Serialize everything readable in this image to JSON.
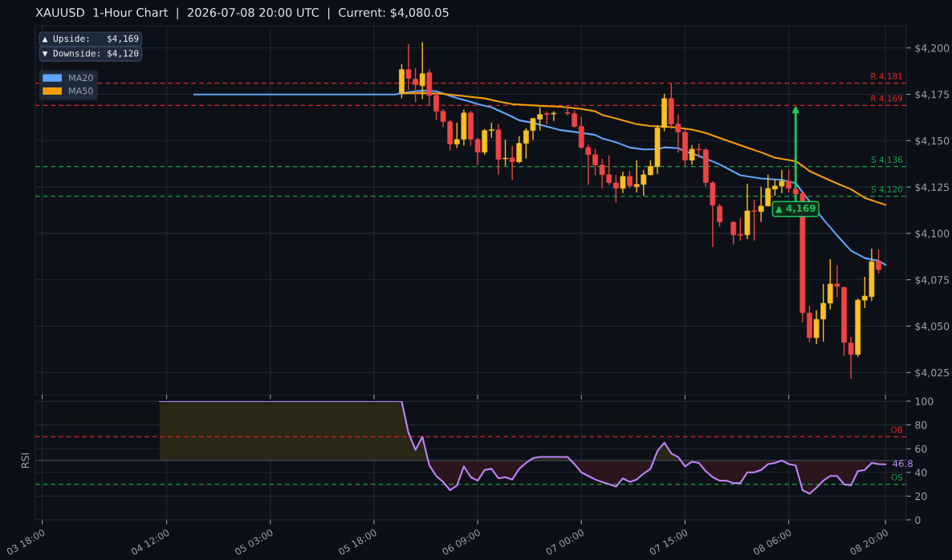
{
  "chart_data": [
    {
      "type": "candlestick",
      "title": "XAUUSD  1-Hour Chart  |  2026-07-08 20:00 UTC  |  Current: $4,080.05",
      "x": [
        "2026-07-05T22:00",
        "2026-07-05T23:00",
        "2026-07-06T00:00",
        "2026-07-06T01:00",
        "2026-07-06T02:00",
        "2026-07-06T03:00",
        "2026-07-06T04:00",
        "2026-07-06T05:00",
        "2026-07-06T06:00",
        "2026-07-06T07:00",
        "2026-07-06T08:00",
        "2026-07-06T09:00",
        "2026-07-06T10:00",
        "2026-07-06T11:00",
        "2026-07-06T12:00",
        "2026-07-06T13:00",
        "2026-07-06T14:00",
        "2026-07-06T15:00",
        "2026-07-06T16:00",
        "2026-07-06T17:00",
        "2026-07-06T18:00",
        "2026-07-06T19:00",
        "2026-07-06T20:00",
        "2026-07-06T22:00",
        "2026-07-06T23:00",
        "2026-07-07T00:00",
        "2026-07-07T01:00",
        "2026-07-07T02:00",
        "2026-07-07T03:00",
        "2026-07-07T04:00",
        "2026-07-07T05:00",
        "2026-07-07T06:00",
        "2026-07-07T07:00",
        "2026-07-07T08:00",
        "2026-07-07T09:00",
        "2026-07-07T10:00",
        "2026-07-07T11:00",
        "2026-07-07T12:00",
        "2026-07-07T13:00",
        "2026-07-07T14:00",
        "2026-07-07T15:00",
        "2026-07-07T16:00",
        "2026-07-07T17:00",
        "2026-07-07T18:00",
        "2026-07-07T19:00",
        "2026-07-07T20:00",
        "2026-07-07T22:00",
        "2026-07-07T23:00",
        "2026-07-08T00:00",
        "2026-07-08T01:00",
        "2026-07-08T02:00",
        "2026-07-08T03:00",
        "2026-07-08T04:00",
        "2026-07-08T05:00",
        "2026-07-08T06:00",
        "2026-07-08T07:00",
        "2026-07-08T08:00",
        "2026-07-08T09:00",
        "2026-07-08T10:00",
        "2026-07-08T11:00",
        "2026-07-08T12:00",
        "2026-07-08T13:00",
        "2026-07-08T14:00",
        "2026-07-08T15:00",
        "2026-07-08T16:00",
        "2026-07-08T17:00",
        "2026-07-08T18:00",
        "2026-07-08T19:00"
      ],
      "ohlc": [
        [
          4175.7,
          4191.3,
          4172.8,
          4188.3
        ],
        [
          4188.3,
          4202.2,
          4177.2,
          4183.7
        ],
        [
          4183.1,
          4189.2,
          4170.7,
          4180.2
        ],
        [
          4179.6,
          4203.0,
          4172.4,
          4186.1
        ],
        [
          4186.6,
          4188.3,
          4169.0,
          4174.4
        ],
        [
          4174.4,
          4176.2,
          4161.2,
          4165.9
        ],
        [
          4165.8,
          4167.0,
          4157.3,
          4160.3
        ],
        [
          4160.2,
          4161.3,
          4144.7,
          4148.2
        ],
        [
          4148.2,
          4159.7,
          4146.0,
          4150.6
        ],
        [
          4150.8,
          4166.7,
          4147.3,
          4164.9
        ],
        [
          4164.9,
          4166.0,
          4147.3,
          4150.8
        ],
        [
          4150.6,
          4151.5,
          4136.9,
          4143.8
        ],
        [
          4143.8,
          4156.3,
          4142.5,
          4155.4
        ],
        [
          4155.5,
          4159.7,
          4151.5,
          4155.9
        ],
        [
          4155.8,
          4158.9,
          4131.7,
          4139.9
        ],
        [
          4140.2,
          4150.6,
          4136.5,
          4140.6
        ],
        [
          4140.7,
          4147.2,
          4128.7,
          4138.6
        ],
        [
          4138.6,
          4152.4,
          4137.8,
          4148.5
        ],
        [
          4148.6,
          4156.7,
          4140.4,
          4155.4
        ],
        [
          4155.5,
          4162.2,
          4150.3,
          4161.9
        ],
        [
          4161.6,
          4168.0,
          4155.5,
          4164.1
        ],
        [
          4164.6,
          4165.8,
          4158.9,
          4164.2
        ],
        [
          4164.4,
          4165.8,
          4160.6,
          4164.8
        ],
        [
          4165.1,
          4168.7,
          4163.7,
          4164.7
        ],
        [
          4164.5,
          4166.2,
          4157.0,
          4157.7
        ],
        [
          4157.6,
          4162.8,
          4145.6,
          4146.4
        ],
        [
          4146.3,
          4148.0,
          4126.1,
          4142.5
        ],
        [
          4142.4,
          4145.7,
          4131.3,
          4136.9
        ],
        [
          4136.8,
          4140.2,
          4124.3,
          4131.7
        ],
        [
          4131.6,
          4142.0,
          4126.1,
          4127.4
        ],
        [
          4127.2,
          4131.6,
          4116.5,
          4124.3
        ],
        [
          4124.3,
          4133.3,
          4121.7,
          4130.7
        ],
        [
          4130.7,
          4133.6,
          4124.3,
          4125.6
        ],
        [
          4125.2,
          4139.4,
          4122.0,
          4126.4
        ],
        [
          4126.4,
          4134.2,
          4120.3,
          4131.6
        ],
        [
          4131.6,
          4139.4,
          4131.3,
          4136.1
        ],
        [
          4136.0,
          4158.4,
          4132.1,
          4156.8
        ],
        [
          4157.1,
          4175.3,
          4155.1,
          4172.7
        ],
        [
          4172.7,
          4180.9,
          4156.4,
          4158.9
        ],
        [
          4158.9,
          4164.1,
          4143.4,
          4154.7
        ],
        [
          4154.5,
          4156.1,
          4136.2,
          4139.5
        ],
        [
          4139.5,
          4147.6,
          4136.9,
          4145.4
        ],
        [
          4145.4,
          4148.5,
          4140.8,
          4145.1
        ],
        [
          4145.0,
          4145.9,
          4125.2,
          4127.4
        ],
        [
          4127.2,
          4128.1,
          4092.7,
          4115.2
        ],
        [
          4114.6,
          4116.0,
          4103.5,
          4106.2
        ],
        [
          4106.0,
          4106.5,
          4094.0,
          4099.2
        ],
        [
          4099.4,
          4108.2,
          4096.1,
          4099.0
        ],
        [
          4099.2,
          4126.8,
          4096.9,
          4112.1
        ],
        [
          4112.2,
          4118.1,
          4096.1,
          4111.9
        ],
        [
          4111.8,
          4125.1,
          4106.2,
          4114.7
        ],
        [
          4114.8,
          4131.6,
          4114.6,
          4124.2
        ],
        [
          4123.9,
          4129.0,
          4120.3,
          4125.5
        ],
        [
          4125.5,
          4134.2,
          4121.7,
          4128.1
        ],
        [
          4128.1,
          4134.2,
          4122.0,
          4124.3
        ],
        [
          4123.8,
          4124.5,
          4120.5,
          4121.3
        ],
        [
          4121.6,
          4121.8,
          4052.0,
          4057.2
        ],
        [
          4057.1,
          4061.0,
          4041.2,
          4043.8
        ],
        [
          4043.8,
          4058.5,
          4040.3,
          4053.6
        ],
        [
          4053.8,
          4072.7,
          4041.6,
          4062.3
        ],
        [
          4062.4,
          4086.1,
          4059.0,
          4072.7
        ],
        [
          4072.7,
          4082.8,
          4065.5,
          4071.5
        ],
        [
          4070.9,
          4071.2,
          4034.0,
          4041.2
        ],
        [
          4040.9,
          4044.1,
          4021.7,
          4034.7
        ],
        [
          4034.7,
          4064.9,
          4033.6,
          4064.0
        ],
        [
          4064.0,
          4076.6,
          4059.7,
          4066.2
        ],
        [
          4065.9,
          4091.7,
          4063.6,
          4084.8
        ],
        [
          4084.8,
          4091.3,
          4078.4,
          4080.5
        ]
      ],
      "colors": [
        "#fbbf24",
        "#ef4444",
        "#ef4444",
        "#fbbf24",
        "#ef4444",
        "#ef4444",
        "#ef4444",
        "#ef4444",
        "#fbbf24",
        "#fbbf24",
        "#ef4444",
        "#ef4444",
        "#fbbf24",
        "#fbbf24",
        "#ef4444",
        "#fbbf24",
        "#ef4444",
        "#fbbf24",
        "#fbbf24",
        "#fbbf24",
        "#fbbf24",
        "#ef4444",
        "#fbbf24",
        "#ef4444",
        "#ef4444",
        "#ef4444",
        "#ef4444",
        "#ef4444",
        "#ef4444",
        "#ef4444",
        "#ef4444",
        "#fbbf24",
        "#ef4444",
        "#fbbf24",
        "#fbbf24",
        "#fbbf24",
        "#fbbf24",
        "#fbbf24",
        "#ef4444",
        "#ef4444",
        "#ef4444",
        "#fbbf24",
        "#ef4444",
        "#ef4444",
        "#ef4444",
        "#ef4444",
        "#ef4444",
        "#ef4444",
        "#fbbf24",
        "#ef4444",
        "#fbbf24",
        "#fbbf24",
        "#fbbf24",
        "#fbbf24",
        "#ef4444",
        "#ef4444",
        "#ef4444",
        "#ef4444",
        "#fbbf24",
        "#fbbf24",
        "#fbbf24",
        "#ef4444",
        "#ef4444",
        "#ef4444",
        "#fbbf24",
        "#fbbf24",
        "#fbbf24",
        "#ef4444"
      ],
      "series": [
        {
          "name": "MA20",
          "type": "line",
          "color": "#60a5fa",
          "x": [
            "2026-07-04T16:00",
            "2026-07-05T21:00",
            "2026-07-05T23:00",
            "2026-07-06T01:00",
            "2026-07-06T03:00",
            "2026-07-06T06:00",
            "2026-07-06T08:00",
            "2026-07-06T09:00",
            "2026-07-06T11:00",
            "2026-07-06T14:00",
            "2026-07-06T15:00",
            "2026-07-06T17:00",
            "2026-07-06T21:00",
            "2026-07-07T00:00",
            "2026-07-07T02:00",
            "2026-07-07T03:00",
            "2026-07-07T05:00",
            "2026-07-07T07:00",
            "2026-07-07T09:00",
            "2026-07-07T11:00",
            "2026-07-07T12:00",
            "2026-07-07T14:00",
            "2026-07-07T15:00",
            "2026-07-07T17:00",
            "2026-07-07T20:00",
            "2026-07-07T23:00",
            "2026-07-08T02:00",
            "2026-07-08T05:00",
            "2026-07-08T07:00",
            "2026-07-08T11:00",
            "2026-07-08T13:00",
            "2026-07-08T15:00",
            "2026-07-08T17:00",
            "2026-07-08T19:00",
            "2026-07-08T20:00"
          ],
          "values": [
            4174.9,
            4174.9,
            4176.2,
            4177.0,
            4176.6,
            4173.0,
            4170.9,
            4169.7,
            4168.0,
            4162.9,
            4161.0,
            4159.6,
            4155.7,
            4154.2,
            4153.1,
            4151.2,
            4149.2,
            4146.3,
            4145.3,
            4145.4,
            4146.4,
            4145.9,
            4144.3,
            4141.8,
            4137.2,
            4131.3,
            4129.6,
            4128.8,
            4127.1,
            4107.6,
            4098.9,
            4090.7,
            4086.7,
            4085.2,
            4083.1
          ]
        },
        {
          "name": "MA50",
          "type": "line",
          "color": "#f59e0b",
          "x": [
            "2026-07-05T22:00",
            "2026-07-06T01:00",
            "2026-07-06T04:00",
            "2026-07-06T07:00",
            "2026-07-06T10:00",
            "2026-07-06T12:00",
            "2026-07-06T14:00",
            "2026-07-06T18:00",
            "2026-07-06T21:00",
            "2026-07-07T00:00",
            "2026-07-07T02:00",
            "2026-07-07T03:00",
            "2026-07-07T06:00",
            "2026-07-07T08:00",
            "2026-07-07T10:00",
            "2026-07-07T13:00",
            "2026-07-07T16:00",
            "2026-07-07T18:00",
            "2026-07-07T21:00",
            "2026-07-08T00:00",
            "2026-07-08T02:00",
            "2026-07-08T04:00",
            "2026-07-08T07:00",
            "2026-07-08T08:00",
            "2026-07-08T09:00",
            "2026-07-08T12:00",
            "2026-07-08T15:00",
            "2026-07-08T17:00",
            "2026-07-08T20:00"
          ],
          "values": [
            4175.5,
            4175.7,
            4175.2,
            4174.0,
            4172.8,
            4171.1,
            4169.7,
            4168.8,
            4168.3,
            4167.1,
            4165.8,
            4163.9,
            4161.0,
            4158.9,
            4157.9,
            4157.4,
            4156.0,
            4154.1,
            4150.1,
            4146.2,
            4143.7,
            4140.8,
            4138.9,
            4136.5,
            4133.6,
            4128.5,
            4123.8,
            4119.1,
            4115.4
          ]
        }
      ],
      "xlim": [
        "2026-07-03T17:00",
        "2026-07-08T23:00"
      ],
      "xticks": [
        {
          "value": "2026-07-03T18:00",
          "label": null
        },
        {
          "value": "2026-07-04T12:00",
          "label": null
        },
        {
          "value": "2026-07-05T03:00",
          "label": null
        },
        {
          "value": "2026-07-05T18:00",
          "label": null
        },
        {
          "value": "2026-07-06T09:00",
          "label": null
        },
        {
          "value": "2026-07-07T00:00",
          "label": null
        },
        {
          "value": "2026-07-07T15:00",
          "label": null
        },
        {
          "value": "2026-07-08T06:00",
          "label": null
        },
        {
          "value": "2026-07-08T20:00",
          "label": null
        }
      ],
      "ylim": [
        4013,
        4212
      ],
      "yticks": [
        {
          "value": 4025,
          "label": "$4,025"
        },
        {
          "value": 4050,
          "label": "$4,050"
        },
        {
          "value": 4075,
          "label": "$4,075"
        },
        {
          "value": 4100,
          "label": "$4,100"
        },
        {
          "value": 4125,
          "label": "$4,125"
        },
        {
          "value": 4150,
          "label": "$4,150"
        },
        {
          "value": 4175,
          "label": "$4,175"
        },
        {
          "value": 4200,
          "label": "$4,200"
        }
      ],
      "tick_labels": "y",
      "grid": true,
      "legend": "top left",
      "ref_lines": [
        {
          "axis": "y",
          "value": 4181,
          "label": "R 4,181",
          "color": "#dc2626",
          "line_style": "dashed"
        },
        {
          "axis": "y",
          "value": 4169,
          "label": "R 4,169",
          "color": "#dc2626",
          "line_style": "dashed"
        },
        {
          "axis": "y",
          "value": 4136,
          "label": "S 4,136",
          "color": "#16a34a",
          "line_style": "dashed"
        },
        {
          "axis": "y",
          "value": 4120,
          "label": "S 4,120",
          "color": "#16a34a",
          "line_style": "dashed"
        }
      ],
      "annotations": [
        "▲ Upside:   $4,169",
        "▼ Downside: $4,120",
        {
          "text": "▲ 4,169",
          "x": "2026-07-08T07:00",
          "y": 4169
        }
      ]
    },
    {
      "type": "line",
      "ylabel": "RSI",
      "series": [
        {
          "color": "#c084fc",
          "x": [
            "2026-07-04T11:00",
            "2026-07-05T22:00",
            "2026-07-05T23:00",
            "2026-07-06T00:00",
            "2026-07-06T01:00",
            "2026-07-06T02:00",
            "2026-07-06T03:00",
            "2026-07-06T04:00",
            "2026-07-06T05:00",
            "2026-07-06T06:00",
            "2026-07-06T07:00",
            "2026-07-06T08:00",
            "2026-07-06T09:00",
            "2026-07-06T10:00",
            "2026-07-06T11:00",
            "2026-07-06T12:00",
            "2026-07-06T13:00",
            "2026-07-06T14:00",
            "2026-07-06T15:00",
            "2026-07-06T16:00",
            "2026-07-06T17:00",
            "2026-07-06T18:00",
            "2026-07-06T19:00",
            "2026-07-06T20:00",
            "2026-07-06T21:00",
            "2026-07-06T22:00",
            "2026-07-06T23:00",
            "2026-07-07T00:00",
            "2026-07-07T01:00",
            "2026-07-07T02:00",
            "2026-07-07T03:00",
            "2026-07-07T04:00",
            "2026-07-07T05:00",
            "2026-07-07T06:00",
            "2026-07-07T07:00",
            "2026-07-07T08:00",
            "2026-07-07T09:00",
            "2026-07-07T10:00",
            "2026-07-07T11:00",
            "2026-07-07T12:00",
            "2026-07-07T13:00",
            "2026-07-07T14:00",
            "2026-07-07T15:00",
            "2026-07-07T16:00",
            "2026-07-07T17:00",
            "2026-07-07T18:00",
            "2026-07-07T19:00",
            "2026-07-07T20:00",
            "2026-07-07T21:00",
            "2026-07-07T22:00",
            "2026-07-07T23:00",
            "2026-07-08T00:00",
            "2026-07-08T01:00",
            "2026-07-08T02:00",
            "2026-07-08T03:00",
            "2026-07-08T04:00",
            "2026-07-08T05:00",
            "2026-07-08T06:00",
            "2026-07-08T07:00",
            "2026-07-08T08:00",
            "2026-07-08T09:00",
            "2026-07-08T10:00",
            "2026-07-08T11:00",
            "2026-07-08T12:00",
            "2026-07-08T13:00",
            "2026-07-08T14:00",
            "2026-07-08T15:00",
            "2026-07-08T16:00",
            "2026-07-08T17:00",
            "2026-07-08T18:00",
            "2026-07-08T19:00",
            "2026-07-08T20:00"
          ],
          "values": [
            100,
            100,
            73,
            59,
            70,
            46,
            37,
            32,
            25,
            29,
            45,
            36,
            33,
            42,
            43,
            35,
            36,
            34,
            43,
            48,
            52,
            53,
            53,
            53,
            53,
            53,
            47,
            40,
            37,
            34,
            32,
            30,
            28,
            35,
            32,
            34,
            39,
            43,
            58,
            65,
            56,
            53,
            45,
            49,
            48,
            41,
            36,
            33,
            33,
            31,
            31,
            40,
            40,
            42,
            47,
            48,
            50,
            47,
            46,
            25,
            22,
            27,
            33,
            37,
            37,
            30,
            29,
            41,
            42,
            48,
            47,
            46.8
          ]
        }
      ],
      "xlim": [
        "2026-07-03T17:00",
        "2026-07-08T23:00"
      ],
      "xticks": [
        {
          "value": "2026-07-03T18:00",
          "label": "03 18:00"
        },
        {
          "value": "2026-07-04T12:00",
          "label": "04 12:00"
        },
        {
          "value": "2026-07-05T03:00",
          "label": "05 03:00"
        },
        {
          "value": "2026-07-05T18:00",
          "label": "05 18:00"
        },
        {
          "value": "2026-07-06T09:00",
          "label": "06 09:00"
        },
        {
          "value": "2026-07-07T00:00",
          "label": "07 00:00"
        },
        {
          "value": "2026-07-07T15:00",
          "label": "07 15:00"
        },
        {
          "value": "2026-07-08T06:00",
          "label": "08 06:00"
        },
        {
          "value": "2026-07-08T20:00",
          "label": "08 20:00"
        }
      ],
      "ylim": [
        0,
        100
      ],
      "yticks": [
        0,
        20,
        40,
        60,
        80,
        100
      ],
      "grid": true,
      "ref_lines": [
        {
          "axis": "y",
          "value": 70,
          "label": "OB",
          "color": "#dc2626",
          "line_style": "dashed"
        },
        {
          "axis": "y",
          "value": 30,
          "label": "OS",
          "color": "#16a34a",
          "line_style": "dashed"
        },
        {
          "axis": "y",
          "value": 50,
          "color": "#374151",
          "line_style": "solid"
        }
      ],
      "annotations": [
        {
          "text": "46.8",
          "x": "2026-07-08T20:00",
          "y": 46.8
        }
      ]
    }
  ]
}
